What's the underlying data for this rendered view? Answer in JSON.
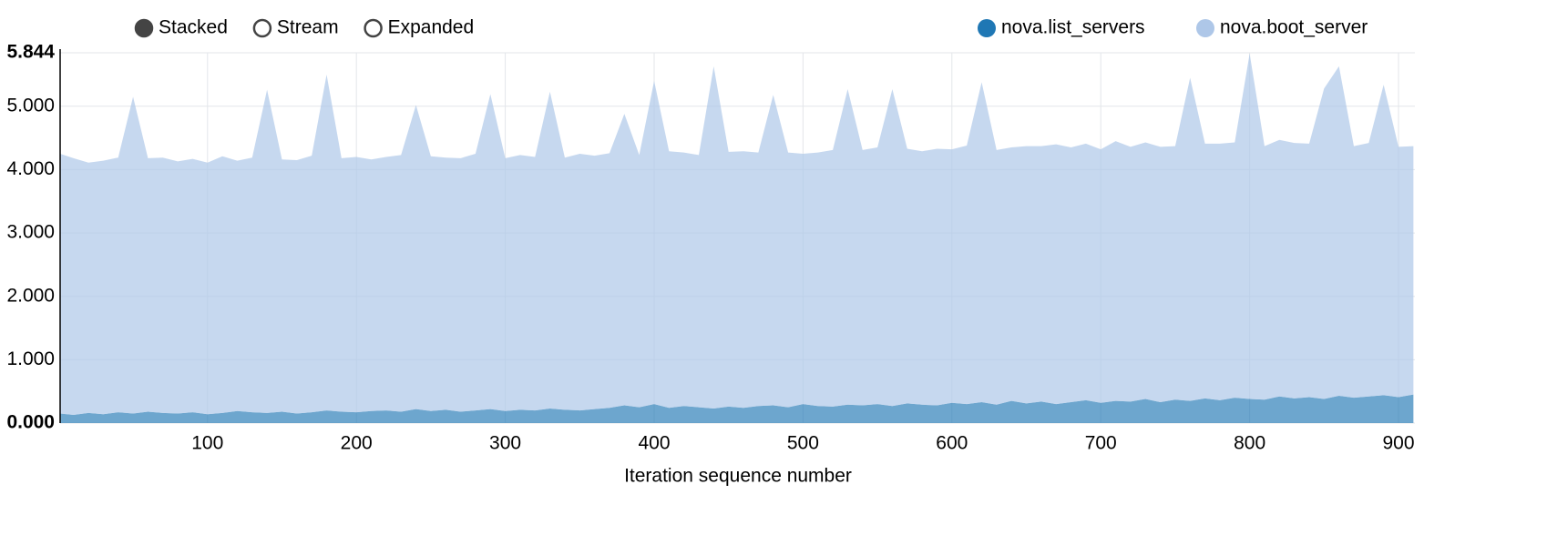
{
  "chart_data": {
    "type": "stacked_area",
    "modes": [
      "Stacked",
      "Stream",
      "Expanded"
    ],
    "x_label": "Iteration sequence number",
    "x": [
      1,
      10,
      20,
      30,
      40,
      50,
      60,
      70,
      80,
      90,
      100,
      110,
      120,
      130,
      140,
      150,
      160,
      170,
      180,
      190,
      200,
      210,
      220,
      230,
      240,
      250,
      260,
      270,
      280,
      290,
      300,
      310,
      320,
      330,
      340,
      350,
      360,
      370,
      380,
      390,
      400,
      410,
      420,
      430,
      440,
      450,
      460,
      470,
      480,
      490,
      500,
      510,
      520,
      530,
      540,
      550,
      560,
      570,
      580,
      590,
      600,
      610,
      620,
      630,
      640,
      650,
      660,
      670,
      680,
      690,
      700,
      710,
      720,
      730,
      740,
      750,
      760,
      770,
      780,
      790,
      800,
      810,
      820,
      830,
      840,
      850,
      860,
      870,
      880,
      890,
      900,
      910
    ],
    "series": [
      {
        "name": "nova.list_servers",
        "color": "#1f77b4",
        "values": [
          0.15,
          0.13,
          0.16,
          0.14,
          0.17,
          0.15,
          0.18,
          0.16,
          0.15,
          0.17,
          0.14,
          0.16,
          0.19,
          0.17,
          0.16,
          0.18,
          0.15,
          0.17,
          0.2,
          0.18,
          0.17,
          0.19,
          0.2,
          0.18,
          0.22,
          0.19,
          0.21,
          0.18,
          0.2,
          0.22,
          0.19,
          0.21,
          0.2,
          0.23,
          0.21,
          0.2,
          0.22,
          0.24,
          0.28,
          0.25,
          0.3,
          0.24,
          0.27,
          0.25,
          0.23,
          0.26,
          0.24,
          0.27,
          0.28,
          0.25,
          0.3,
          0.27,
          0.26,
          0.29,
          0.28,
          0.3,
          0.27,
          0.31,
          0.29,
          0.28,
          0.32,
          0.3,
          0.33,
          0.29,
          0.35,
          0.31,
          0.34,
          0.3,
          0.33,
          0.36,
          0.32,
          0.35,
          0.34,
          0.38,
          0.33,
          0.37,
          0.35,
          0.39,
          0.36,
          0.4,
          0.38,
          0.37,
          0.42,
          0.39,
          0.41,
          0.38,
          0.43,
          0.4,
          0.42,
          0.44,
          0.41,
          0.45
        ]
      },
      {
        "name": "nova.boot_server",
        "color": "#aec7e8",
        "values": [
          4.1,
          4.05,
          3.95,
          4.0,
          4.02,
          5.0,
          4.0,
          4.03,
          3.98,
          4.0,
          3.97,
          4.05,
          3.95,
          4.02,
          5.1,
          3.98,
          4.0,
          4.05,
          5.3,
          4.0,
          4.03,
          3.97,
          4.0,
          4.05,
          4.8,
          4.02,
          3.98,
          4.0,
          4.05,
          4.97,
          3.99,
          4.02,
          4.0,
          5.0,
          3.98,
          4.05,
          4.0,
          4.02,
          4.6,
          3.98,
          5.1,
          4.05,
          4.0,
          3.98,
          5.4,
          4.02,
          4.05,
          4.0,
          4.9,
          4.02,
          3.95,
          4.0,
          4.05,
          4.98,
          4.03,
          4.05,
          5.0,
          4.02,
          4.0,
          4.05,
          4.0,
          4.08,
          5.05,
          4.02,
          4.0,
          4.06,
          4.03,
          4.1,
          4.02,
          4.05,
          4.0,
          4.1,
          4.02,
          4.05,
          4.03,
          4.0,
          5.1,
          4.02,
          4.05,
          4.03,
          5.45,
          4.0,
          4.05,
          4.03,
          4.0,
          4.9,
          5.2,
          3.97,
          4.0,
          4.9,
          3.95,
          3.92
        ]
      }
    ],
    "xlim": [
      1,
      911
    ],
    "xticks": [
      100,
      200,
      300,
      400,
      500,
      600,
      700,
      800,
      900
    ],
    "ylim": [
      0,
      5.844
    ],
    "yticks": [
      {
        "value": 0,
        "label": "0.000"
      },
      {
        "value": 1,
        "label": "1.000"
      },
      {
        "value": 2,
        "label": "2.000"
      },
      {
        "value": 3,
        "label": "3.000"
      },
      {
        "value": 4,
        "label": "4.000"
      },
      {
        "value": 5,
        "label": "5.000"
      },
      5.844
    ],
    "grid": true
  }
}
